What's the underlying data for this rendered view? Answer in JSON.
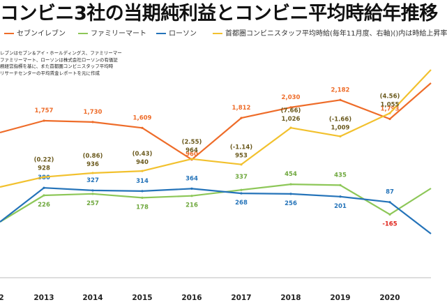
{
  "title": "コンビニ3社の当期純利益とコンビニ平均時給年推移",
  "legend": [
    {
      "label": "セブンイレブン",
      "color": "#ee6c29"
    },
    {
      "label": "ファミリーマート",
      "color": "#8dc758"
    },
    {
      "label": "ローソン",
      "color": "#2473b9"
    },
    {
      "label": "首都圏コンビニスタッフ平均時給(毎年11月度、右軸)()内は時給上昇率",
      "color": "#f2c12e"
    }
  ],
  "source_note": [
    "レブンはセブン＆アイ・ホールディングス、ファミリーマー",
    "ファミリーマート、ローソンは株式会社ローソンの有価証",
    "務経営指標を基に、また首都圏コンビニスタッフ平均時",
    "リサーチセンターの平均賃金レポートを元に作成"
  ],
  "chart_data": {
    "type": "line",
    "x": [
      "2013",
      "2014",
      "2015",
      "2016",
      "2017",
      "2018",
      "2019",
      "2020"
    ],
    "visible_x_labels": [
      "2",
      "2013",
      "2014",
      "2015",
      "2016",
      "2017",
      "2018",
      "2019",
      "2020"
    ],
    "series": [
      {
        "name": "セブンイレブン",
        "color": "#ee6c29",
        "x": [
          "2013",
          "2014",
          "2015",
          "2016",
          "2017",
          "2018",
          "2019",
          "2020"
        ],
        "values": [
          1757,
          1730,
          1609,
          960,
          1812,
          2030,
          2182,
          1793
        ],
        "labels": [
          "1,757",
          "1,730",
          "1,609",
          "960",
          "1,812",
          "2,030",
          "2,182",
          "1,793"
        ]
      },
      {
        "name": "ファミリーマート",
        "color": "#8dc758",
        "x": [
          "2013",
          "2014",
          "2015",
          "2016",
          "2017",
          "2018",
          "2019",
          "2020"
        ],
        "values": [
          226,
          257,
          178,
          216,
          337,
          454,
          435,
          -165
        ],
        "labels": [
          "226",
          "257",
          "178",
          "216",
          "337",
          "454",
          "435",
          "-165"
        ]
      },
      {
        "name": "ローソン",
        "color": "#2473b9",
        "x": [
          "2013",
          "2014",
          "2015",
          "2016",
          "2017",
          "2018",
          "2019",
          "2020"
        ],
        "values": [
          380,
          327,
          314,
          364,
          268,
          256,
          201,
          87
        ],
        "labels": [
          "380",
          "327",
          "314",
          "364",
          "268",
          "256",
          "201",
          "87"
        ]
      },
      {
        "name": "首都圏コンビニスタッフ平均時給(毎年11月度、右軸)()内は時給上昇率",
        "color": "#f2c12e",
        "axis": "right",
        "x": [
          "2013",
          "2014",
          "2015",
          "2016",
          "2017",
          "2018",
          "2019",
          "2020"
        ],
        "values": [
          928,
          936,
          940,
          964,
          953,
          1026,
          1009,
          1055
        ],
        "labels": [
          "928",
          "936",
          "940",
          "964",
          "953",
          "1,026",
          "1,009",
          "1,055"
        ],
        "rates": [
          "(0.22)",
          "(0.86)",
          "(0.43)",
          "(2.55)",
          "(-1.14)",
          "(7.66)",
          "(-1.66)",
          "(4.56)"
        ]
      }
    ]
  }
}
